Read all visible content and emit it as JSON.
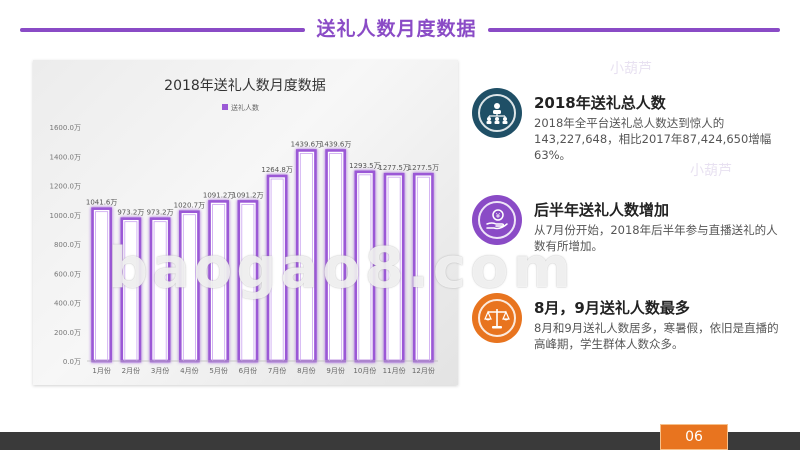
{
  "header": {
    "title": "送礼人数月度数据"
  },
  "chart_data": {
    "type": "bar",
    "title": "2018年送礼人数月度数据",
    "legend": {
      "entries": [
        "送礼人数"
      ],
      "placement": "top"
    },
    "categories": [
      "1月份",
      "2月份",
      "3月份",
      "4月份",
      "5月份",
      "6月份",
      "7月份",
      "8月份",
      "9月份",
      "10月份",
      "11月份",
      "12月份"
    ],
    "series": [
      {
        "name": "送礼人数",
        "values": [
          1041.6,
          973.2,
          973.2,
          1020.7,
          1091.2,
          1091.2,
          1264.8,
          1439.6,
          1439.6,
          1293.5,
          1277.5,
          1277.5
        ],
        "labels": [
          "1041.6万",
          "973.2万",
          "973.2万",
          "1020.7万",
          "1091.2万",
          "1091.2万",
          "1264.8万",
          "1439.6万",
          "1439.6万",
          "1293.5万",
          "1277.5万",
          "1277.5万"
        ]
      }
    ],
    "yticks": [
      "0.0万",
      "200.0万",
      "400.0万",
      "600.0万",
      "800.0万",
      "1000.0万",
      "1200.0万",
      "1400.0万",
      "1600.0万"
    ],
    "ylim": [
      0,
      1600
    ],
    "grid": false,
    "colors": {
      "bar_fill": "#ffffff",
      "bar_stroke": "#9b59d6",
      "bar_glow": "#c9a3ef"
    }
  },
  "info": [
    {
      "icon": "people-network-icon",
      "title": "2018年送礼总人数",
      "body": "2018年全平台送礼总人数达到惊人的143,227,648，相比2017年87,424,650增幅63%。"
    },
    {
      "icon": "hand-coin-icon",
      "title": "后半年送礼人数增加",
      "body": "从7月份开始，2018年后半年参与直播送礼的人数有所增加。"
    },
    {
      "icon": "scales-icon",
      "title": "8月，9月送礼人数最多",
      "body": "8月和9月送礼人数居多，寒暑假，依旧是直播的高峰期，学生群体人数众多。"
    }
  ],
  "watermarks": {
    "brand": "小葫芦",
    "site": "baogao8.com"
  },
  "footer": {
    "page": "06"
  },
  "colors": {
    "accent_purple": "#8a4bc6",
    "accent_navy": "#1f4f66",
    "accent_orange": "#e8741f"
  }
}
